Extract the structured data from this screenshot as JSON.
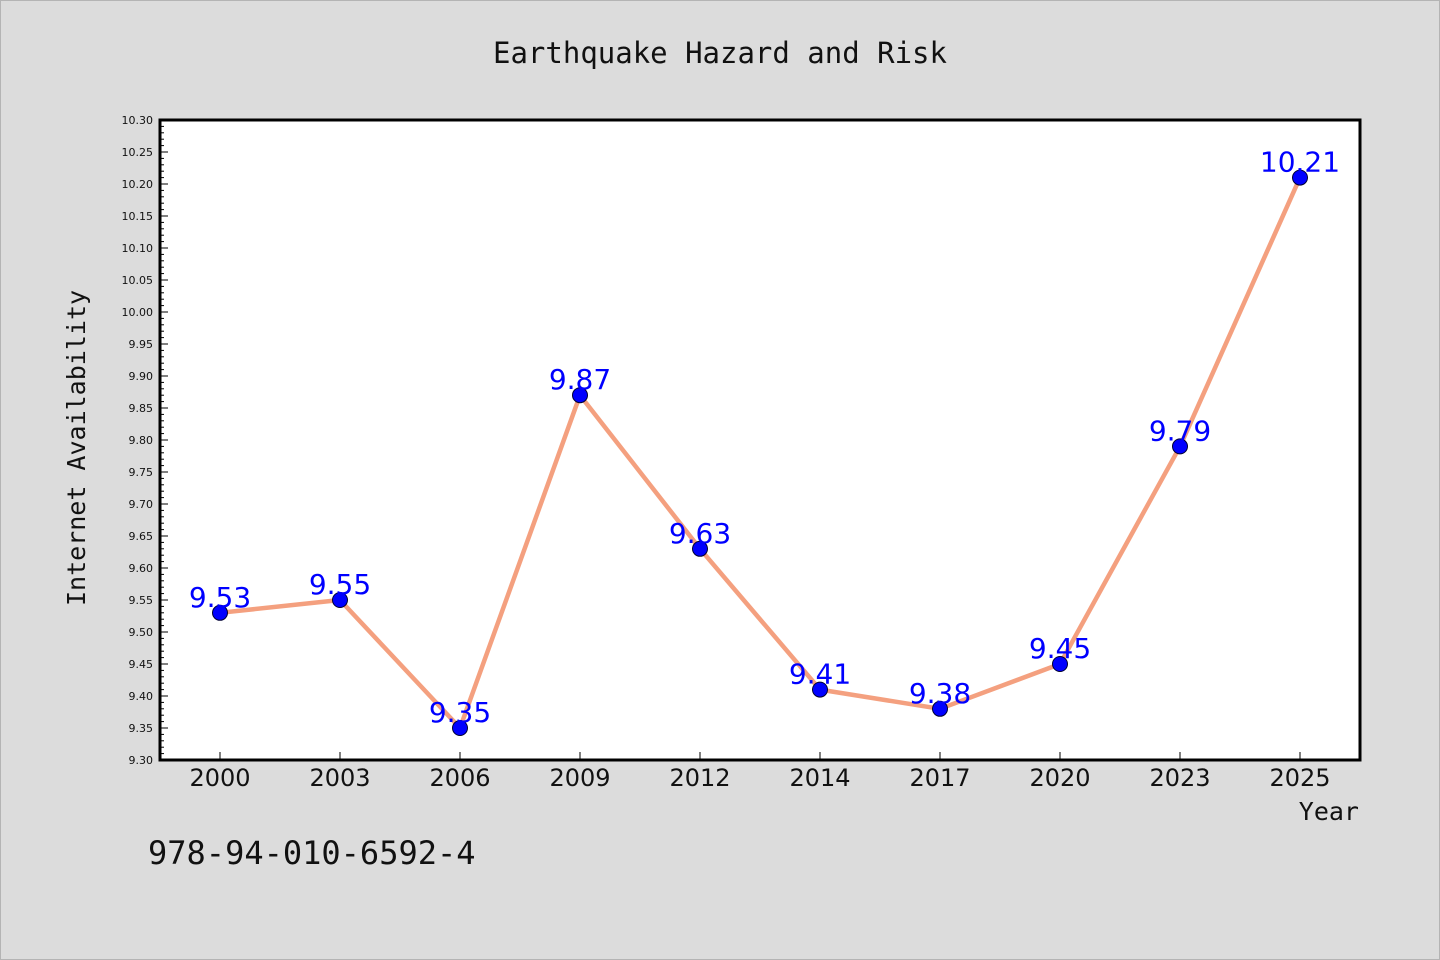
{
  "chart_data": {
    "type": "line",
    "title": "Earthquake Hazard and Risk",
    "xlabel": "Year",
    "ylabel": "Internet Availability",
    "categories": [
      "2000",
      "2003",
      "2006",
      "2009",
      "2012",
      "2014",
      "2017",
      "2020",
      "2023",
      "2025"
    ],
    "series": [
      {
        "values": [
          9.53,
          9.55,
          9.35,
          9.87,
          9.63,
          9.41,
          9.38,
          9.45,
          9.79,
          10.21
        ],
        "line_color": "#f4a07f",
        "marker_color": "#0000ff"
      }
    ],
    "data_labels": [
      "9.53",
      "9.55",
      "9.35",
      "9.87",
      "9.63",
      "9.41",
      "9.38",
      "9.45",
      "9.79",
      "10.21"
    ],
    "ylim": [
      9.3,
      10.3
    ],
    "yticks": [
      "9.30",
      "9.35",
      "9.40",
      "9.45",
      "9.50",
      "9.55",
      "9.60",
      "9.65",
      "9.70",
      "9.75",
      "9.80",
      "9.85",
      "9.90",
      "9.95",
      "10.00",
      "10.05",
      "10.10",
      "10.15",
      "10.20",
      "10.25",
      "10.30"
    ],
    "grid": false,
    "legend": "none"
  },
  "footnote": "978-94-010-6592-4",
  "colors": {
    "background": "#dcdcdc",
    "plot_area": "#ffffff",
    "line": "#f4a07f",
    "marker": "#0000ff",
    "data_label": "#0000ff"
  }
}
